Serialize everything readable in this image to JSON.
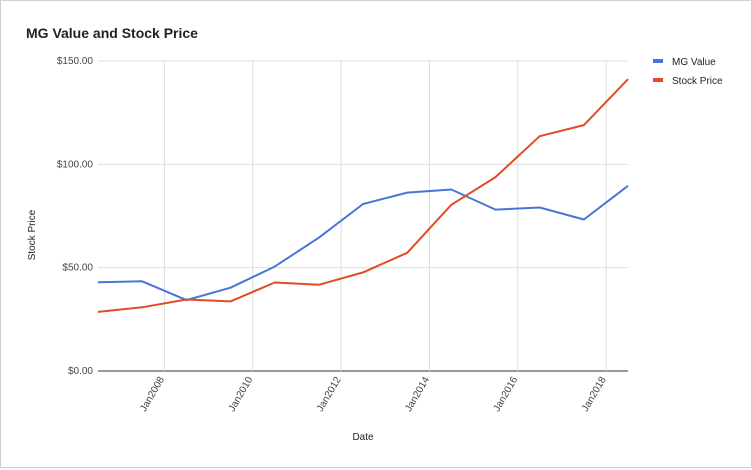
{
  "chart_data": {
    "type": "line",
    "title": "MG Value and Stock Price",
    "xlabel": "Date",
    "ylabel": "Stock Price",
    "x": [
      "2006-07-01",
      "2007-07-01",
      "2008-07-01",
      "2009-07-01",
      "2010-07-01",
      "2011-07-01",
      "2012-07-01",
      "2013-07-01",
      "2014-07-01",
      "2015-07-01",
      "2016-07-01",
      "2017-07-01",
      "2018-07-01"
    ],
    "x_ticks": [
      "Jan2008",
      "Jan2010",
      "Jan2012",
      "Jan2014",
      "Jan2016",
      "Jan2018"
    ],
    "x_tick_dates": [
      "2008-01-01",
      "2010-01-01",
      "2012-01-01",
      "2014-01-01",
      "2016-01-01",
      "2018-01-01"
    ],
    "xlim": [
      "2006-07-01",
      "2018-07-01"
    ],
    "ylim": [
      0,
      150
    ],
    "y_ticks": [
      0,
      50,
      100,
      150
    ],
    "y_tick_labels": [
      "$0.00",
      "$50.00",
      "$100.00",
      "$150.00"
    ],
    "grid": true,
    "legend_position": "right",
    "series": [
      {
        "name": "MG Value",
        "color": "#4a74d8",
        "values": [
          42.9,
          43.4,
          34.3,
          40.3,
          50.5,
          64.5,
          80.8,
          86.3,
          87.8,
          78.1,
          79.1,
          73.3,
          89.6
        ]
      },
      {
        "name": "Stock Price",
        "color": "#e04d23",
        "values": [
          28.6,
          30.8,
          34.6,
          33.7,
          42.8,
          41.7,
          47.7,
          57.2,
          80.4,
          93.8,
          113.6,
          119.0,
          141.2
        ]
      }
    ]
  }
}
